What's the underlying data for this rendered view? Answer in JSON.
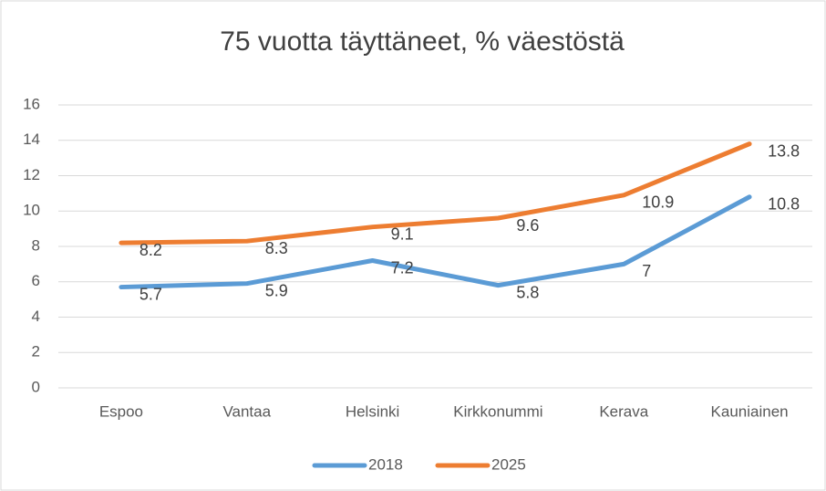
{
  "chart_data": {
    "type": "line",
    "title": "75 vuotta täyttäneet, % väestöstä",
    "categories": [
      "Espoo",
      "Vantaa",
      "Helsinki",
      "Kirkkonummi",
      "Kerava",
      "Kauniainen"
    ],
    "series": [
      {
        "name": "2018",
        "color": "#5b9bd5",
        "values": [
          5.7,
          5.9,
          7.2,
          5.8,
          7,
          10.8
        ]
      },
      {
        "name": "2025",
        "color": "#ed7d31",
        "values": [
          8.2,
          8.3,
          9.1,
          9.6,
          10.9,
          13.8
        ]
      }
    ],
    "ylim": [
      0,
      16
    ],
    "yticks": [
      0,
      2,
      4,
      6,
      8,
      10,
      12,
      14,
      16
    ],
    "grid": true,
    "legend": "bottom"
  }
}
